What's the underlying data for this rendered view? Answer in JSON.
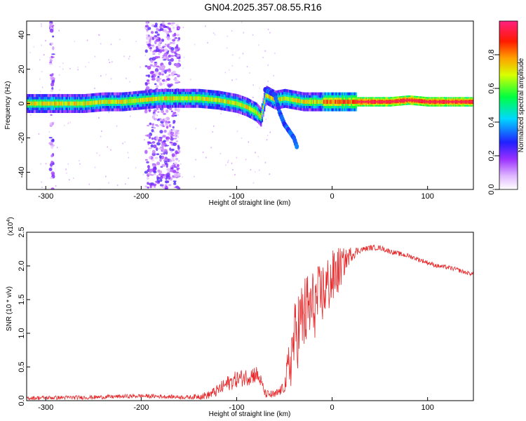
{
  "page": {
    "title": "GN04.2025.357.08.55.R16"
  },
  "chart_data": [
    {
      "type": "heatmap",
      "title": "GN04.2025.357.08.55.R16",
      "xlabel": "Height of straight line (km)",
      "ylabel": "Frequency (Hz)",
      "xlim": [
        -320,
        148
      ],
      "ylim": [
        -50,
        48
      ],
      "xticks": [
        -300,
        -200,
        -100,
        0,
        100
      ],
      "yticks": [
        -40,
        -20,
        0,
        20,
        40
      ],
      "colorbar": {
        "label": "Normalized spectral amplitude",
        "range": [
          0,
          1
        ],
        "ticks": [
          0.0,
          0.2,
          0.4,
          0.6,
          0.8
        ],
        "colors": [
          "#ffffff",
          "#d9b3ff",
          "#8a2be2",
          "#0000ff",
          "#00ffff",
          "#00ff00",
          "#ffff00",
          "#ff8c00",
          "#ff0000",
          "#ff1493"
        ]
      },
      "main_band_ridge": {
        "x": [
          -320,
          -300,
          -280,
          -260,
          -240,
          -220,
          -200,
          -180,
          -160,
          -140,
          -120,
          -100,
          -90,
          -80,
          -75,
          -70,
          -60,
          -50,
          -40,
          -30,
          -20,
          -10,
          0,
          20,
          40,
          60,
          80,
          100,
          120,
          148
        ],
        "y": [
          0,
          0,
          0,
          0,
          1,
          1,
          2,
          3,
          3,
          3,
          2,
          0,
          -2,
          -5,
          -8,
          5,
          2,
          3,
          2,
          1,
          1,
          1,
          1,
          1,
          1,
          1,
          2,
          1,
          1,
          1
        ]
      },
      "branch_ridge": {
        "x": [
          -70,
          -60,
          -55,
          -50,
          -45,
          -40,
          -37
        ],
        "y": [
          8,
          5,
          -5,
          -12,
          -16,
          -20,
          -25
        ]
      },
      "vertical_noise_bands": [
        [
          -195,
          -160
        ],
        [
          -295,
          -292
        ]
      ]
    },
    {
      "type": "line",
      "xlabel": "Height of straight line (km)",
      "ylabel": "SNR (10 * v/v)",
      "y_multiplier": "(x10",
      "y_multiplier_exp": "4",
      "y_multiplier_close": ")",
      "xlim": [
        -320,
        148
      ],
      "ylim": [
        0,
        2.5
      ],
      "xticks": [
        -300,
        -200,
        -100,
        0,
        100
      ],
      "yticks": [
        0.0,
        0.5,
        1.0,
        1.5,
        2.0,
        2.5
      ],
      "ytick_labels": [
        "0.0",
        "0.5",
        "1.0",
        "1.5",
        "2.0",
        "2.5"
      ],
      "color": "#e8292b",
      "envelope": {
        "x": [
          -320,
          -250,
          -200,
          -150,
          -130,
          -120,
          -110,
          -100,
          -90,
          -80,
          -75,
          -70,
          -60,
          -50,
          -45,
          -40,
          -35,
          -30,
          -25,
          -20,
          -15,
          -10,
          -5,
          0,
          5,
          10,
          15,
          20,
          30,
          40,
          50,
          60,
          70,
          80,
          90,
          100,
          110,
          120,
          130,
          140,
          148
        ],
        "y": [
          0.04,
          0.05,
          0.07,
          0.05,
          0.08,
          0.15,
          0.25,
          0.32,
          0.35,
          0.4,
          0.3,
          0.1,
          0.08,
          0.2,
          0.5,
          0.9,
          1.1,
          1.25,
          1.35,
          1.4,
          1.5,
          1.6,
          1.7,
          1.8,
          1.9,
          2.0,
          2.1,
          2.18,
          2.24,
          2.27,
          2.27,
          2.22,
          2.18,
          2.15,
          2.1,
          2.05,
          2.0,
          1.98,
          1.95,
          1.9,
          1.88
        ]
      },
      "noise_amplitude": {
        "x": [
          -320,
          -150,
          -130,
          -110,
          -80,
          -70,
          -50,
          -45,
          -35,
          -25,
          -15,
          -5,
          5,
          15,
          30,
          148
        ],
        "y": [
          0.03,
          0.03,
          0.06,
          0.12,
          0.14,
          0.06,
          0.08,
          0.45,
          0.6,
          0.6,
          0.5,
          0.45,
          0.4,
          0.15,
          0.04,
          0.03
        ]
      }
    }
  ]
}
